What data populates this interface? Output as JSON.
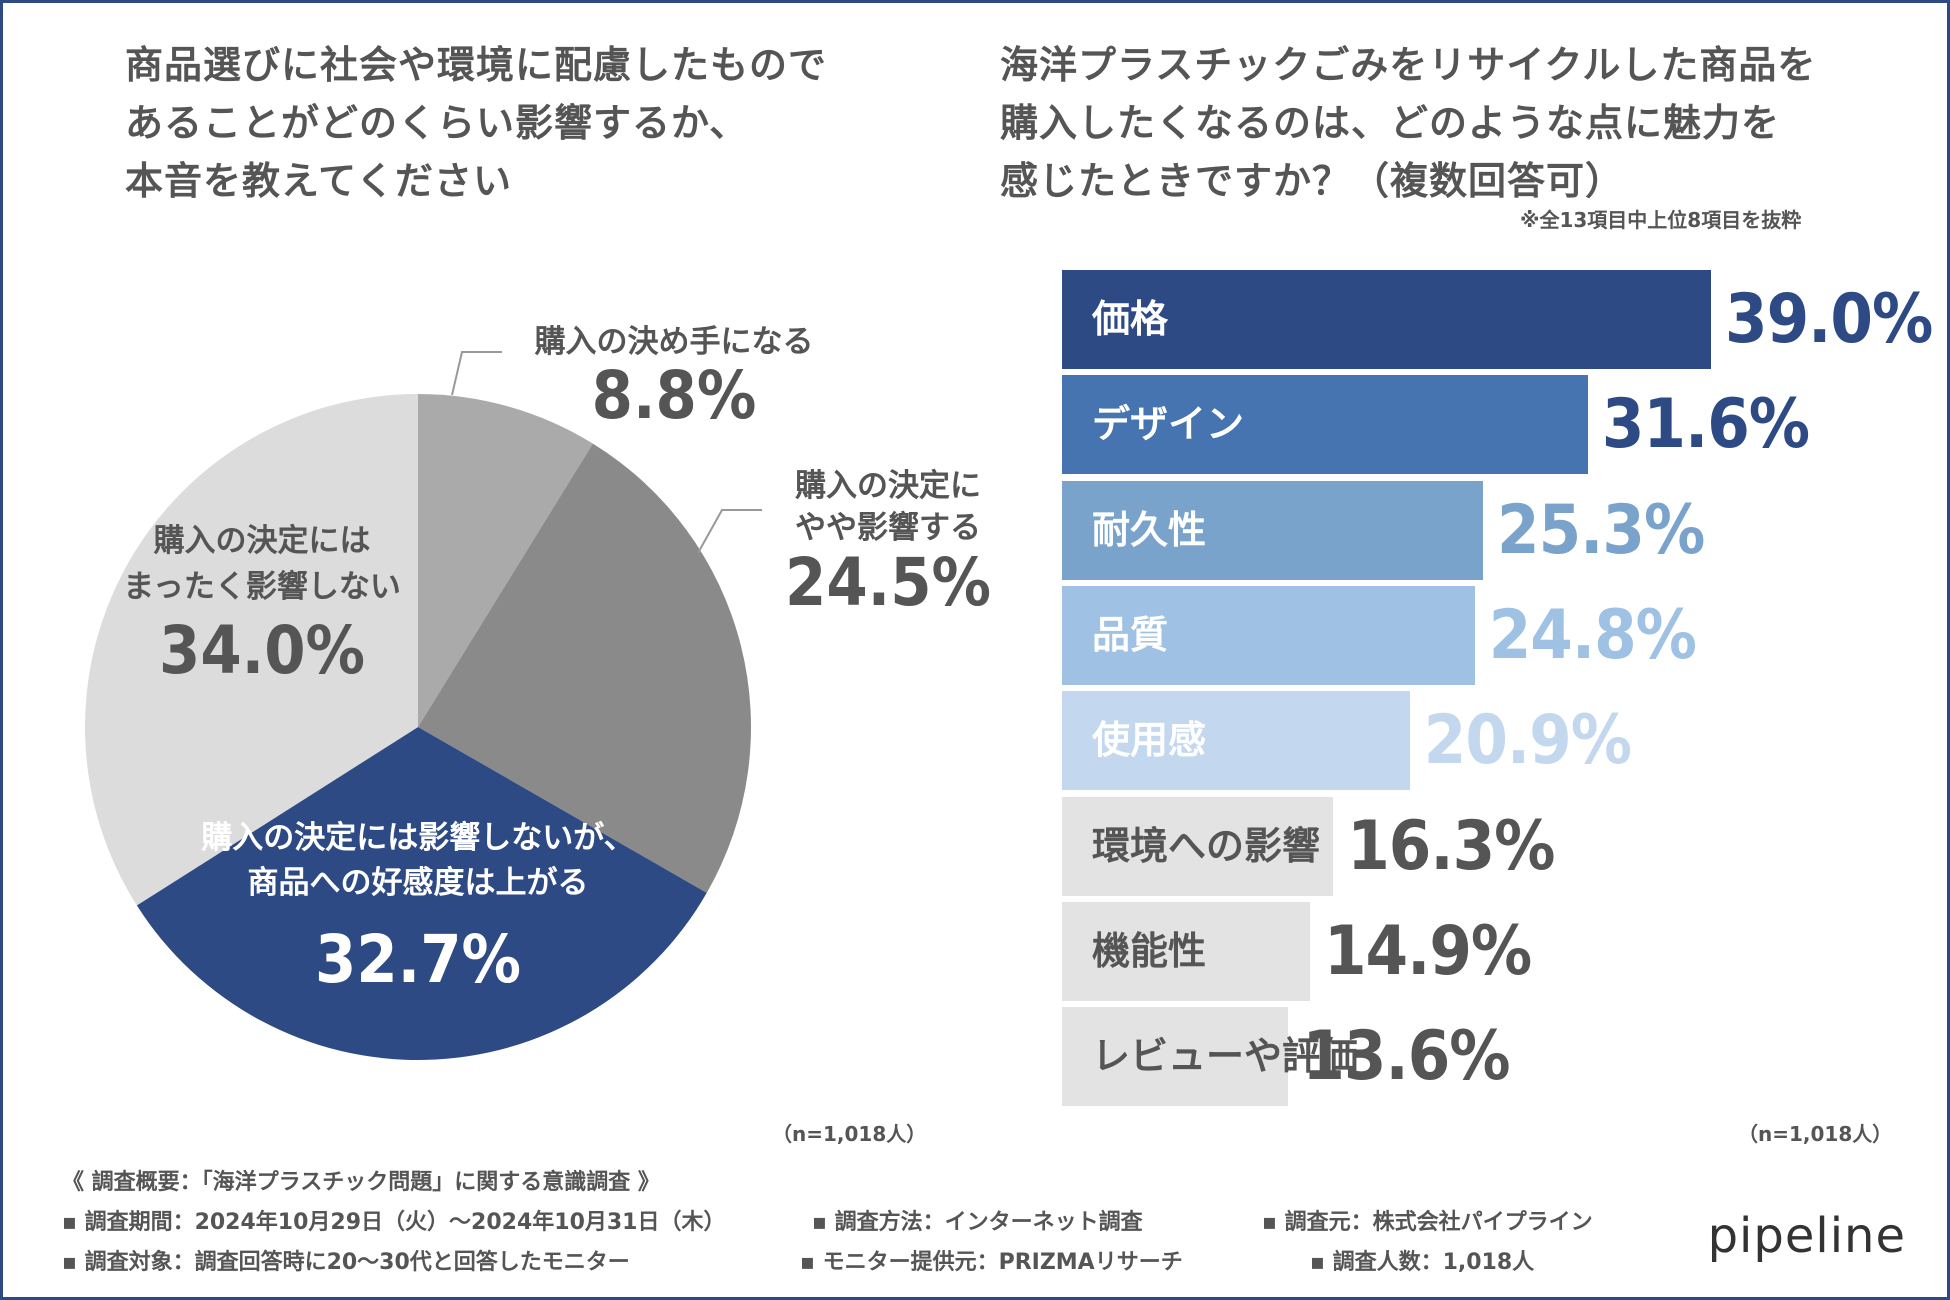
{
  "left_title": [
    "商品選びに社会や環境に配慮したもので",
    "あることがどのくらい影響するか、",
    "本音を教えてください"
  ],
  "right_title": [
    "海洋プラスチックごみをリサイクルした商品を",
    "購入したくなるのは、どのような点に魅力を",
    "感じたときですか？（複数回答可）"
  ],
  "right_note": "※全13項目中上位8項目を抜粋",
  "chart_data": [
    {
      "type": "pie",
      "title": "商品選びに社会や環境に配慮したものであることがどのくらい影響するか、本音を教えてください",
      "n_label": "（n=1,018人）",
      "slices": [
        {
          "label": [
            "購入の決め手になる"
          ],
          "value": 8.8,
          "value_label": "8.8%",
          "color": "#aaaaaa",
          "label_color": "#555555"
        },
        {
          "label": [
            "購入の決定に",
            "やや影響する"
          ],
          "value": 24.5,
          "value_label": "24.5%",
          "color": "#8a8a8a",
          "label_color": "#555555"
        },
        {
          "label": [
            "購入の決定には影響しないが、",
            "商品への好感度は上がる"
          ],
          "value": 32.7,
          "value_label": "32.7%",
          "color": "#2d4a85",
          "label_color": "#ffffff"
        },
        {
          "label": [
            "購入の決定には",
            "まったく影響しない"
          ],
          "value": 34.0,
          "value_label": "34.0%",
          "color": "#dcdcdc",
          "label_color": "#555555"
        }
      ]
    },
    {
      "type": "bar",
      "orientation": "horizontal",
      "title": "海洋プラスチックごみをリサイクルした商品を購入したくなるのは、どのような点に魅力を感じたときですか？（複数回答可）",
      "n_label": "（n=1,018人）",
      "categories": [
        "価格",
        "デザイン",
        "耐久性",
        "品質",
        "使用感",
        "環境への影響",
        "機能性",
        "レビューや評価"
      ],
      "values": [
        39.0,
        31.6,
        25.3,
        24.8,
        20.9,
        16.3,
        14.9,
        13.6
      ],
      "value_labels": [
        "39.0%",
        "31.6%",
        "25.3%",
        "24.8%",
        "20.9%",
        "16.3%",
        "14.9%",
        "13.6%"
      ],
      "bar_colors": [
        "#2d4a85",
        "#4574b0",
        "#7aa3cc",
        "#9fc1e3",
        "#c3d8ee",
        "#e3e3e3",
        "#e3e3e3",
        "#e3e3e3"
      ],
      "label_colors": [
        "#ffffff",
        "#ffffff",
        "#ffffff",
        "#ffffff",
        "#ffffff",
        "#555555",
        "#555555",
        "#555555"
      ],
      "value_colors": [
        "#2d4a85",
        "#2d4a85",
        "#7aa3cc",
        "#9fc1e3",
        "#c3d8ee",
        "#555555",
        "#555555",
        "#555555"
      ],
      "xlim": [
        0,
        39.0
      ]
    }
  ],
  "footer": {
    "title": "《 調査概要：「海洋プラスチック問題」に関する意識調査 》",
    "period": "▪ 調査期間：2024年10月29日（火）～2024年10月31日（木）",
    "method": "▪ 調査方法：インターネット調査",
    "source": "▪ 調査元：株式会社パイプライン",
    "target": "▪ 調査対象：調査回答時に20～30代と回答したモニター",
    "panel": "▪ モニター提供元：PRIZMAリサーチ",
    "count": "▪ 調査人数：1,018人"
  },
  "brand": "pipeline",
  "colors": {
    "frame": "#2d4a85",
    "text": "#555555"
  }
}
